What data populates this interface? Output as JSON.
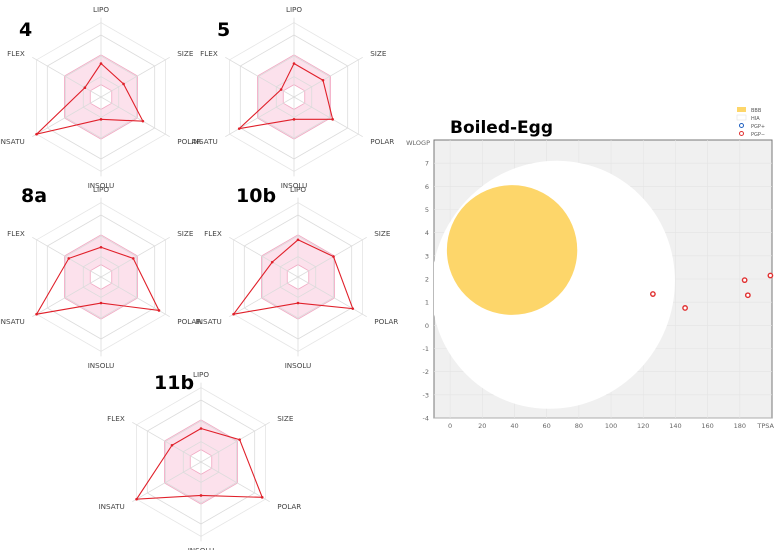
{
  "chart_data": [
    {
      "type": "radar",
      "title": "4",
      "axes": [
        "LIPO",
        "SIZE",
        "POLAR",
        "INSOLU",
        "INSATU",
        "FLEX"
      ],
      "values": [
        0.45,
        0.35,
        0.65,
        0.3,
        1.0,
        0.25
      ],
      "range": [
        0,
        1
      ]
    },
    {
      "type": "radar",
      "title": "5",
      "axes": [
        "LIPO",
        "SIZE",
        "POLAR",
        "INSOLU",
        "INSATU",
        "FLEX"
      ],
      "values": [
        0.45,
        0.45,
        0.6,
        0.3,
        0.85,
        0.2
      ],
      "range": [
        0,
        1
      ]
    },
    {
      "type": "radar",
      "title": "8a",
      "axes": [
        "LIPO",
        "SIZE",
        "POLAR",
        "INSOLU",
        "INSATU",
        "FLEX"
      ],
      "values": [
        0.4,
        0.5,
        0.9,
        0.35,
        1.0,
        0.5
      ],
      "range": [
        0,
        1
      ]
    },
    {
      "type": "radar",
      "title": "10b",
      "axes": [
        "LIPO",
        "SIZE",
        "POLAR",
        "INSOLU",
        "INSATU",
        "FLEX"
      ],
      "values": [
        0.5,
        0.55,
        0.85,
        0.35,
        1.0,
        0.4
      ],
      "range": [
        0,
        1
      ]
    },
    {
      "type": "radar",
      "title": "11b",
      "axes": [
        "LIPO",
        "SIZE",
        "POLAR",
        "INSOLU",
        "INSATU",
        "FLEX"
      ],
      "values": [
        0.45,
        0.6,
        0.95,
        0.45,
        1.0,
        0.45
      ],
      "range": [
        0,
        1
      ]
    },
    {
      "type": "scatter",
      "title": "Boiled-Egg",
      "xlabel": "TPSA",
      "ylabel": "WLOGP",
      "xlim": [
        -10,
        200
      ],
      "ylim": [
        -4,
        8
      ],
      "xticks": [
        0,
        20,
        40,
        60,
        80,
        100,
        120,
        140,
        160,
        180
      ],
      "yticks": [
        -4,
        -3,
        -2,
        -1,
        0,
        1,
        2,
        3,
        4,
        5,
        6,
        7
      ],
      "legend": [
        "BBB",
        "HIA",
        "PGP+",
        "PGP−"
      ],
      "legend_position": "top-right",
      "regions": {
        "hia": {
          "color": "#ffffff"
        },
        "bbb": {
          "color": "#fdd66a"
        }
      },
      "background": "#f0f0f0",
      "series": [
        {
          "name": "PGP−",
          "color": "#e03030",
          "points": [
            {
              "x": 126,
              "y": 1.35
            },
            {
              "x": 146,
              "y": 0.75
            },
            {
              "x": 183,
              "y": 1.95
            },
            {
              "x": 185,
              "y": 1.3
            },
            {
              "x": 199,
              "y": 2.15
            }
          ]
        }
      ]
    }
  ]
}
